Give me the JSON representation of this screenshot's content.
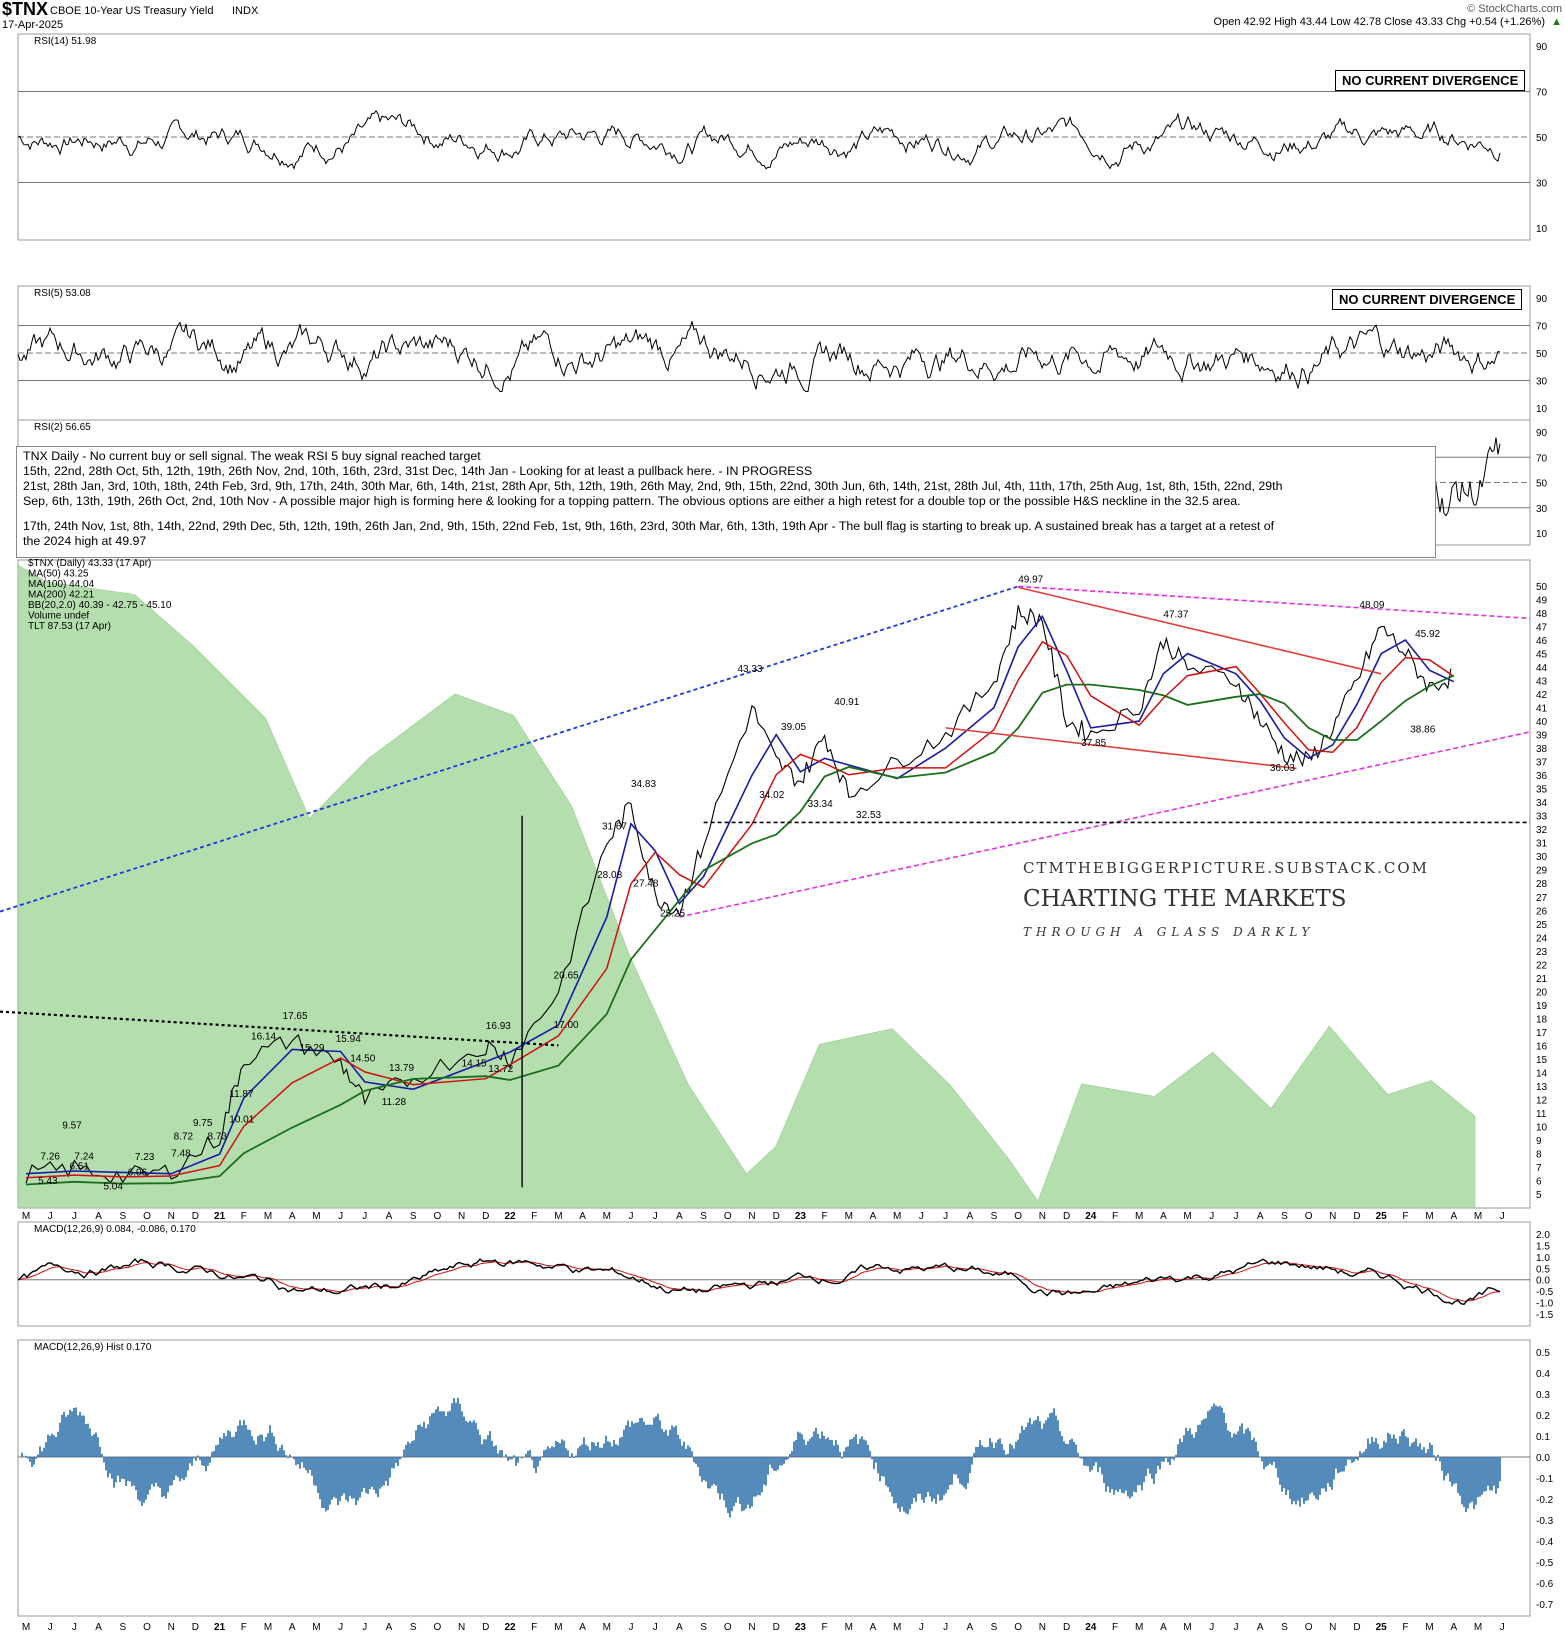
{
  "header": {
    "symbol": "$TNX",
    "name": "CBOE 10-Year US Treasury Yield",
    "exchange": "INDX",
    "date": "17-Apr-2025",
    "source": "© StockCharts.com",
    "ohlc": "Open 42.92  High 43.44  Low 42.78  Close 43.33  Chg +0.54 (+1.26%)",
    "ohlc_arrow": "▲"
  },
  "panels": {
    "rsi14": {
      "label": "RSI(14) 51.98",
      "box": "NO CURRENT DIVERGENCE",
      "levels": [
        "90",
        "70",
        "50",
        "30",
        "10"
      ]
    },
    "rsi5": {
      "label": "RSI(5) 53.08",
      "box": "NO CURRENT DIVERGENCE",
      "levels": [
        "90",
        "70",
        "50",
        "30",
        "10"
      ]
    },
    "rsi2": {
      "label": "RSI(2) 56.65",
      "levels": [
        "90",
        "70",
        "50",
        "30",
        "10"
      ]
    },
    "macd": {
      "label": "MACD(12,26,9) 0.084, -0.086, 0.170",
      "levels": [
        "2.0",
        "1.5",
        "1.0",
        "0.5",
        "0.0",
        "-0.5",
        "-1.0",
        "-1.5"
      ]
    },
    "hist": {
      "label": "MACD(12,26,9) Hist 0.170",
      "levels": [
        "0.5",
        "0.4",
        "0.3",
        "0.2",
        "0.1",
        "0.0",
        "-0.1",
        "-0.2",
        "-0.3",
        "-0.4",
        "-0.5",
        "-0.6",
        "-0.7"
      ]
    }
  },
  "notes": {
    "l1": "TNX Daily - No current buy or sell signal. The weak RSI 5 buy signal reached target",
    "l2": "15th, 22nd, 28th Oct, 5th, 12th, 19th, 26th Nov, 2nd, 10th, 16th, 23rd, 31st Dec, 14th Jan - Looking for at least a pullback here. - IN PROGRESS",
    "l3": "21st, 28th Jan, 3rd, 10th, 18th, 24th Feb, 3rd, 9th, 17th, 24th, 30th Mar, 6th, 14th, 21st, 28th Apr, 5th, 12th, 19th, 26th May, 2nd, 9th, 15th, 22nd, 30th Jun, 6th, 14th, 21st, 28th Jul, 4th, 11th, 17th, 25th Aug, 1st, 8th, 15th, 22nd, 29th",
    "l4": "Sep, 6th, 13th, 19th, 26th Oct, 2nd, 10th Nov - A possible major high is forming here & looking for a topping pattern. The obvious options are either a high retest for a double top or the possible H&S neckline in the 32.5 area.",
    "l5": "17th, 24th Nov, 1st, 8th, 14th, 22nd, 29th Dec, 5th, 12th, 19th, 26th Jan, 2nd, 9th, 15th, 22nd Feb, 1st, 9th, 16th, 23rd, 30th Mar, 6th, 13th, 19th Apr - The bull flag is starting to break up. A sustained break has a target at a retest of",
    "l6": "the 2024 high at 49.97"
  },
  "legend": {
    "main": "$TNX (Daily) 43.33 (17 Apr)",
    "ma50": "MA(50) 43.25",
    "ma100": "MA(100) 44.04",
    "ma200": "MA(200) 42.21",
    "bb": "BB(20,2.0) 40.39 - 42.75 - 45.10",
    "volume": "Volume undef",
    "tlt": "TLT 87.53 (17 Apr)"
  },
  "branding": {
    "url": "CTMTHEBIGGERPICTURE.SUBSTACK.COM",
    "title": "CHARTING THE MARKETS",
    "tagline": "THROUGH A GLASS DARKLY"
  },
  "colors": {
    "price": "#000000",
    "ma50": "#1a1aa8",
    "ma100": "#d01010",
    "ma200": "#1b6e1b",
    "tlt": "#a9d9a0",
    "hist": "#2a6ea8",
    "resistance": "#e0403a",
    "trend": "#1a3adf",
    "magenta": "#e030e0"
  },
  "chart_data": {
    "type": "line",
    "title": "CBOE 10-Year US Treasury Yield",
    "ylim": [
      5,
      50
    ],
    "months": [
      "M",
      "J",
      "J",
      "A",
      "S",
      "O",
      "N",
      "D",
      "21",
      "F",
      "M",
      "A",
      "M",
      "J",
      "J",
      "A",
      "S",
      "O",
      "N",
      "D",
      "22",
      "F",
      "M",
      "A",
      "M",
      "J",
      "J",
      "A",
      "S",
      "O",
      "N",
      "D",
      "23",
      "F",
      "M",
      "A",
      "M",
      "J",
      "J",
      "A",
      "S",
      "O",
      "N",
      "D",
      "24",
      "F",
      "M",
      "A",
      "M",
      "J",
      "J",
      "A",
      "S",
      "O",
      "N",
      "D",
      "25",
      "F",
      "M",
      "A",
      "M",
      "J"
    ],
    "yticks": [
      "50",
      "49",
      "48",
      "47",
      "46",
      "45",
      "44",
      "43",
      "42",
      "41",
      "40",
      "39",
      "38",
      "37",
      "36",
      "35",
      "34",
      "33",
      "32",
      "31",
      "30",
      "29",
      "28",
      "27",
      "26",
      "25",
      "24",
      "23",
      "22",
      "21",
      "20",
      "19",
      "18",
      "17",
      "16",
      "15",
      "14",
      "13",
      "12",
      "11",
      "10",
      "9",
      "8",
      "7",
      "6",
      "5"
    ],
    "price_points": [
      [
        0,
        6.5
      ],
      [
        2,
        6.9
      ],
      [
        4,
        6.3
      ],
      [
        6,
        6.7
      ],
      [
        8,
        9.2
      ],
      [
        9,
        15.0
      ],
      [
        11,
        16.4
      ],
      [
        13,
        14.7
      ],
      [
        14,
        11.9
      ],
      [
        16,
        13.6
      ],
      [
        19,
        16.0
      ],
      [
        20,
        15.0
      ],
      [
        22,
        20.0
      ],
      [
        24,
        31.0
      ],
      [
        25,
        33.8
      ],
      [
        26,
        27.0
      ],
      [
        27,
        26.0
      ],
      [
        28,
        31.0
      ],
      [
        30,
        41.0
      ],
      [
        31,
        37.0
      ],
      [
        32,
        35.5
      ],
      [
        33,
        39.0
      ],
      [
        34,
        34.5
      ],
      [
        36,
        37.0
      ],
      [
        38,
        39.0
      ],
      [
        40,
        43.0
      ],
      [
        41,
        48.0
      ],
      [
        42,
        47.5
      ],
      [
        43,
        40.0
      ],
      [
        44,
        39.0
      ],
      [
        46,
        41.0
      ],
      [
        47,
        46.0
      ],
      [
        48,
        44.0
      ],
      [
        50,
        43.0
      ],
      [
        51,
        40.0
      ],
      [
        52,
        37.5
      ],
      [
        53,
        37.0
      ],
      [
        54,
        39.5
      ],
      [
        55,
        43.0
      ],
      [
        56,
        47.0
      ],
      [
        57,
        45.0
      ],
      [
        58,
        42.5
      ],
      [
        59,
        43.33
      ]
    ],
    "annotations": [
      "5.43",
      "9.57",
      "7.26",
      "7.24",
      "6.51",
      "5.04",
      "6.06",
      "7.23",
      "7.48",
      "8.72",
      "9.75",
      "8.73",
      "10.01",
      "11.87",
      "16.14",
      "17.65",
      "15.29",
      "15.94",
      "14.50",
      "13.79",
      "11.28",
      "14.15",
      "16.93",
      "13.72",
      "17.00",
      "20.65",
      "31.67",
      "34.83",
      "28.08",
      "27.48",
      "25.25",
      "43.33",
      "39.05",
      "34.02",
      "40.91",
      "33.34",
      "32.53",
      "49.97",
      "37.85",
      "47.37",
      "36.03",
      "48.09",
      "45.92",
      "38.86"
    ]
  }
}
